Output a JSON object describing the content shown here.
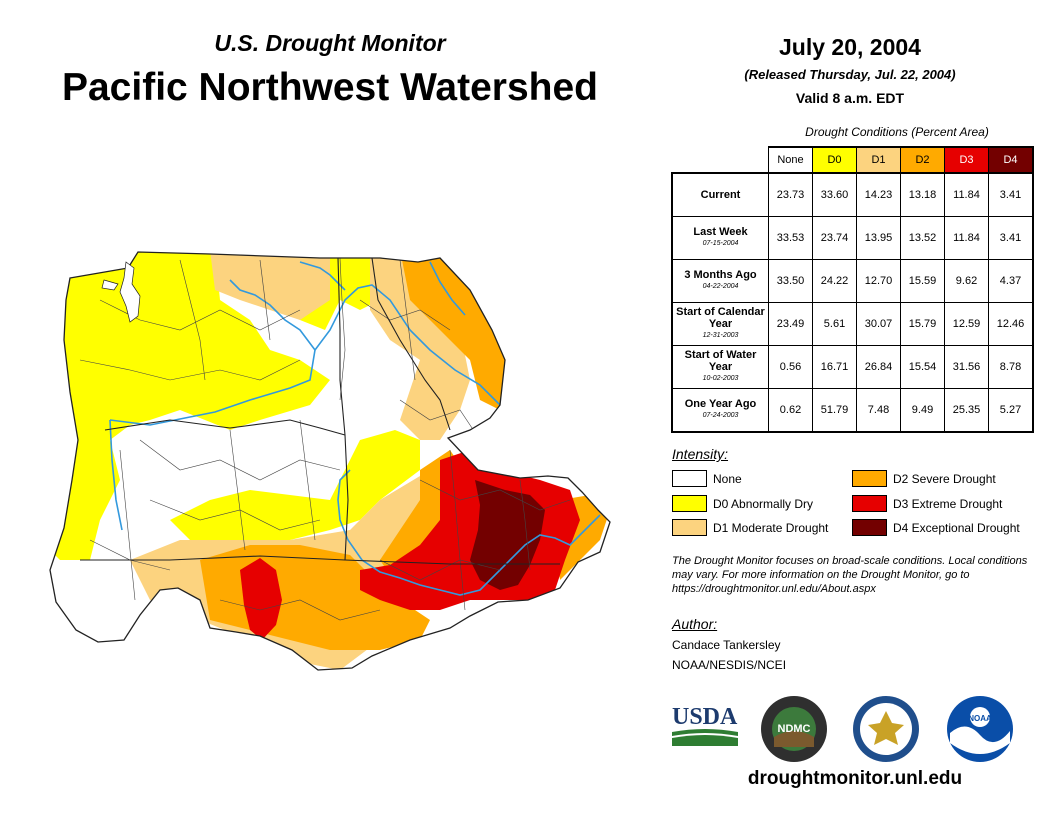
{
  "header": {
    "subtitle": "U.S. Drought Monitor",
    "title": "Pacific Northwest Watershed",
    "date": "July 20, 2004",
    "released": "(Released Thursday, Jul. 22, 2004)",
    "valid": "Valid 8 a.m. EDT"
  },
  "table": {
    "caption": "Drought Conditions (Percent Area)",
    "columns": [
      "None",
      "D0",
      "D1",
      "D2",
      "D3",
      "D4"
    ],
    "rows": [
      {
        "label": "Current",
        "sub": "",
        "values": [
          "23.73",
          "33.60",
          "14.23",
          "13.18",
          "11.84",
          "3.41"
        ]
      },
      {
        "label": "Last Week",
        "sub": "07-15-2004",
        "values": [
          "33.53",
          "23.74",
          "13.95",
          "13.52",
          "11.84",
          "3.41"
        ]
      },
      {
        "label": "3 Months Ago",
        "sub": "04-22-2004",
        "values": [
          "33.50",
          "24.22",
          "12.70",
          "15.59",
          "9.62",
          "4.37"
        ]
      },
      {
        "label": "Start of Calendar Year",
        "sub": "12-31-2003",
        "values": [
          "23.49",
          "5.61",
          "30.07",
          "15.79",
          "12.59",
          "12.46"
        ]
      },
      {
        "label": "Start of Water Year",
        "sub": "10-02-2003",
        "values": [
          "0.56",
          "16.71",
          "26.84",
          "15.54",
          "31.56",
          "8.78"
        ]
      },
      {
        "label": "One Year Ago",
        "sub": "07-24-2003",
        "values": [
          "0.62",
          "51.79",
          "7.48",
          "9.49",
          "25.35",
          "5.27"
        ]
      }
    ]
  },
  "legend": {
    "heading": "Intensity:",
    "items": [
      {
        "label": "None",
        "color": "#ffffff"
      },
      {
        "label": "D0 Abnormally Dry",
        "color": "#ffff00"
      },
      {
        "label": "D1 Moderate Drought",
        "color": "#fcd37f"
      },
      {
        "label": "D2 Severe Drought",
        "color": "#ffaa00"
      },
      {
        "label": "D3 Extreme Drought",
        "color": "#e60000"
      },
      {
        "label": "D4 Exceptional Drought",
        "color": "#730000"
      }
    ]
  },
  "note": "The Drought Monitor focuses on broad-scale conditions. Local conditions may vary. For more information on the Drought Monitor, go to https://droughtmonitor.unl.edu/About.aspx",
  "author": {
    "heading": "Author:",
    "name": "Candace Tankersley",
    "org": "NOAA/NESDIS/NCEI"
  },
  "logos": {
    "usda": "USDA",
    "ndmc": "NDMC",
    "noaa": "NOAA"
  },
  "website": "droughtmonitor.unl.edu",
  "colors": {
    "river": "#3399dd",
    "boundary": "#444444"
  }
}
